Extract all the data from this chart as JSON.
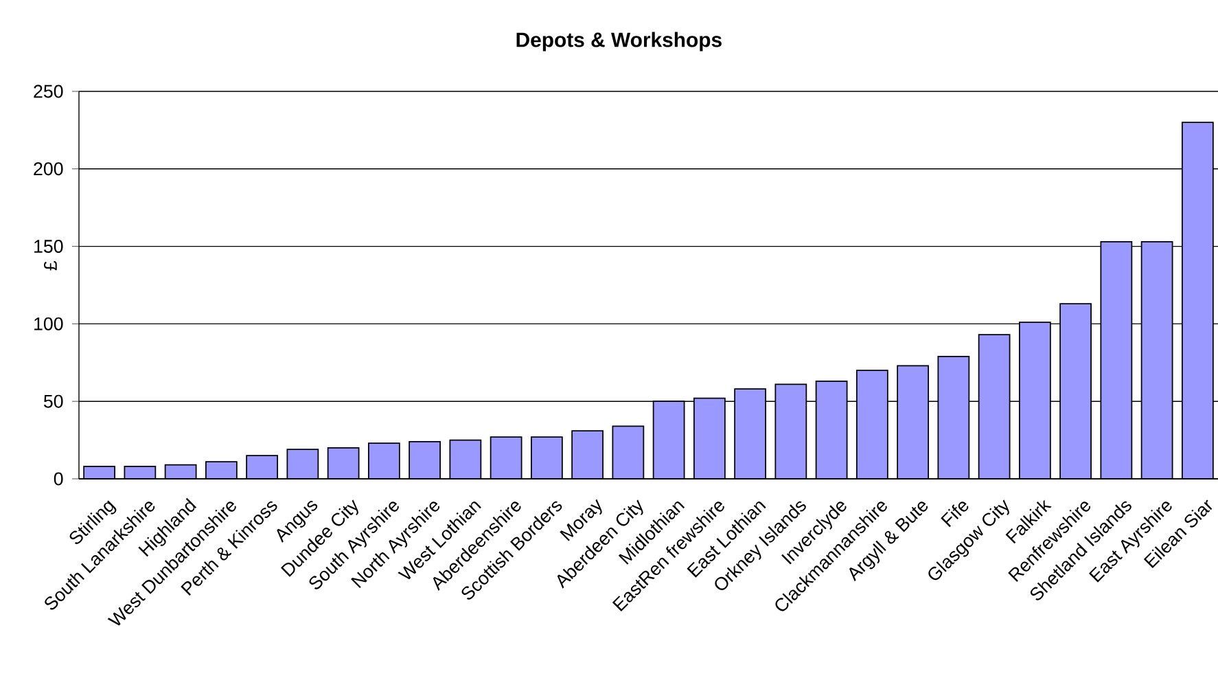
{
  "chart_data": {
    "type": "bar",
    "title": "Depots & Workshops",
    "ylabel": "£",
    "categories": [
      "Stirling",
      "South Lanarkshire",
      "Highland",
      "West Dunbartonshire",
      "Perth & Kinross",
      "Angus",
      "Dundee City",
      "South Ayrshire",
      "North Ayrshire",
      "West Lothian",
      "Aberdeenshire",
      "Scottish Borders",
      "Moray",
      "Aberdeen City",
      "Midlothian",
      "EastRen frewshire",
      "East Lothian",
      "Orkney Islands",
      "Inverclyde",
      "Clackmannanshire",
      "Argyll & Bute",
      "Fife",
      "Glasgow City",
      "Falkirk",
      "Renfrewshire",
      "Shetland Islands",
      "East Ayrshire",
      "Eilean Siar"
    ],
    "values": [
      8,
      8,
      9,
      11,
      15,
      19,
      20,
      23,
      24,
      25,
      27,
      27,
      31,
      34,
      50,
      52,
      58,
      61,
      63,
      70,
      73,
      79,
      93,
      101,
      113,
      153,
      153,
      230
    ],
    "color": "#9999ff",
    "ylim": [
      0,
      250
    ],
    "yticks": [
      0,
      50,
      100,
      150,
      200,
      250
    ],
    "grid": "y"
  }
}
